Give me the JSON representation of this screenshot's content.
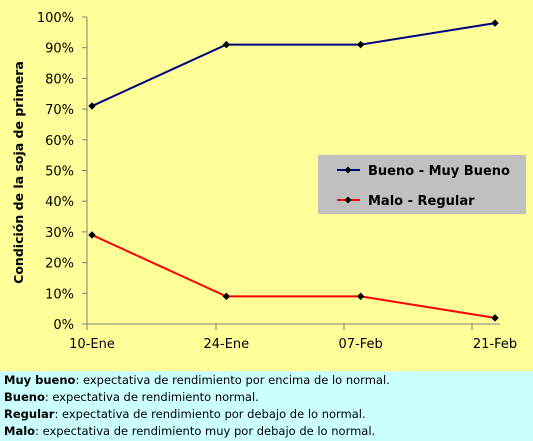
{
  "chart_data": {
    "type": "line",
    "ylabel": "Condición de la soja de primera",
    "categories": [
      "10-Ene",
      "24-Ene",
      "07-Feb",
      "21-Feb"
    ],
    "y_ticks": [
      "0%",
      "10%",
      "20%",
      "30%",
      "40%",
      "50%",
      "60%",
      "70%",
      "80%",
      "90%",
      "100%"
    ],
    "ylim": [
      0,
      100
    ],
    "legend_position": "right",
    "series": [
      {
        "name": "Bueno - Muy Bueno",
        "values": [
          71,
          91,
          91,
          98
        ],
        "color": "#000080"
      },
      {
        "name": "Malo - Regular",
        "values": [
          29,
          9,
          9,
          2
        ],
        "color": "#ff0000"
      }
    ],
    "colors": {
      "plot_background": "#ffff99",
      "legend_background": "#c0c0c0",
      "axis": "#808080"
    }
  },
  "footnotes": [
    {
      "term": "Muy bueno",
      "text": ": expectativa de rendimiento por encima de lo normal."
    },
    {
      "term": "Bueno",
      "text": ": expectativa de rendimiento normal."
    },
    {
      "term": "Regular",
      "text": ": expectativa de rendimiento por debajo de lo normal."
    },
    {
      "term": "Malo",
      "text": ": expectativa de rendimiento muy por debajo de lo normal."
    }
  ]
}
